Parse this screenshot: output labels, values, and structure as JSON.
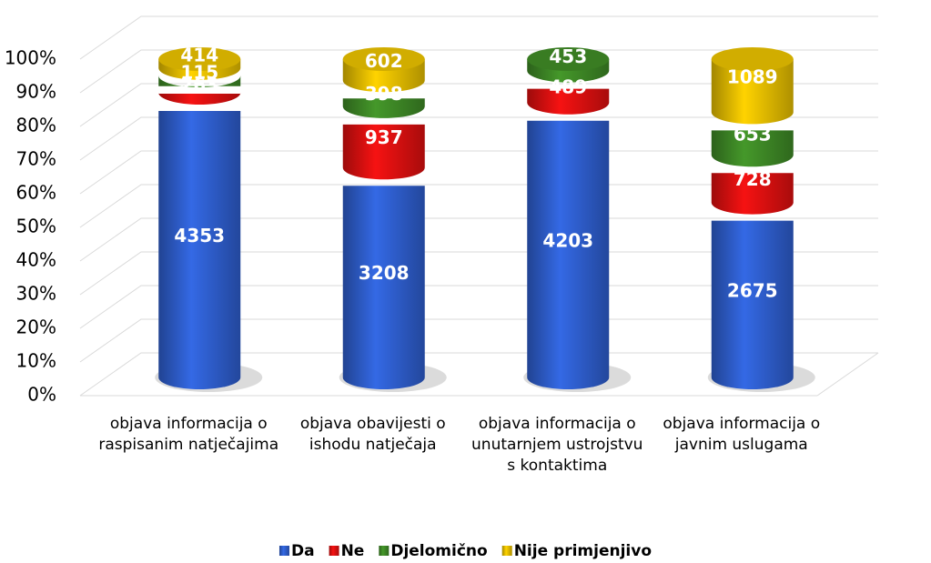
{
  "chart_data": {
    "type": "cylinder_stacked_percent",
    "categories": [
      "objava informacija o raspisanim natječajima",
      "objava obavijesti o ishodu natječaja",
      "objava informacija o unutarnjem ustrojstvu s kontaktima",
      "objava informacija o javnim uslugama"
    ],
    "series": [
      {
        "name": "Da",
        "color": "#2f5fd0",
        "values": [
          4353,
          3208,
          4203,
          2675
        ]
      },
      {
        "name": "Ne",
        "color": "#e01010",
        "values": [
          263,
          937,
          489,
          728
        ]
      },
      {
        "name": "Djelomično",
        "color": "#3f8a26",
        "values": [
          115,
          398,
          453,
          653
        ]
      },
      {
        "name": "Nije primjenjivo",
        "color": "#e8c000",
        "values": [
          414,
          602,
          null,
          1089
        ]
      }
    ],
    "stacking": "percent",
    "ylim": [
      0,
      100
    ],
    "yticks": [
      {
        "value": 0,
        "label": "0%"
      },
      {
        "value": 10,
        "label": "10%"
      },
      {
        "value": 20,
        "label": "20%"
      },
      {
        "value": 30,
        "label": "30%"
      },
      {
        "value": 40,
        "label": "40%"
      },
      {
        "value": 50,
        "label": "50%"
      },
      {
        "value": 60,
        "label": "60%"
      },
      {
        "value": 70,
        "label": "70%"
      },
      {
        "value": 80,
        "label": "80%"
      },
      {
        "value": 90,
        "label": "90%"
      },
      {
        "value": 100,
        "label": "100%"
      }
    ],
    "grid": true,
    "legend": "bottom"
  }
}
